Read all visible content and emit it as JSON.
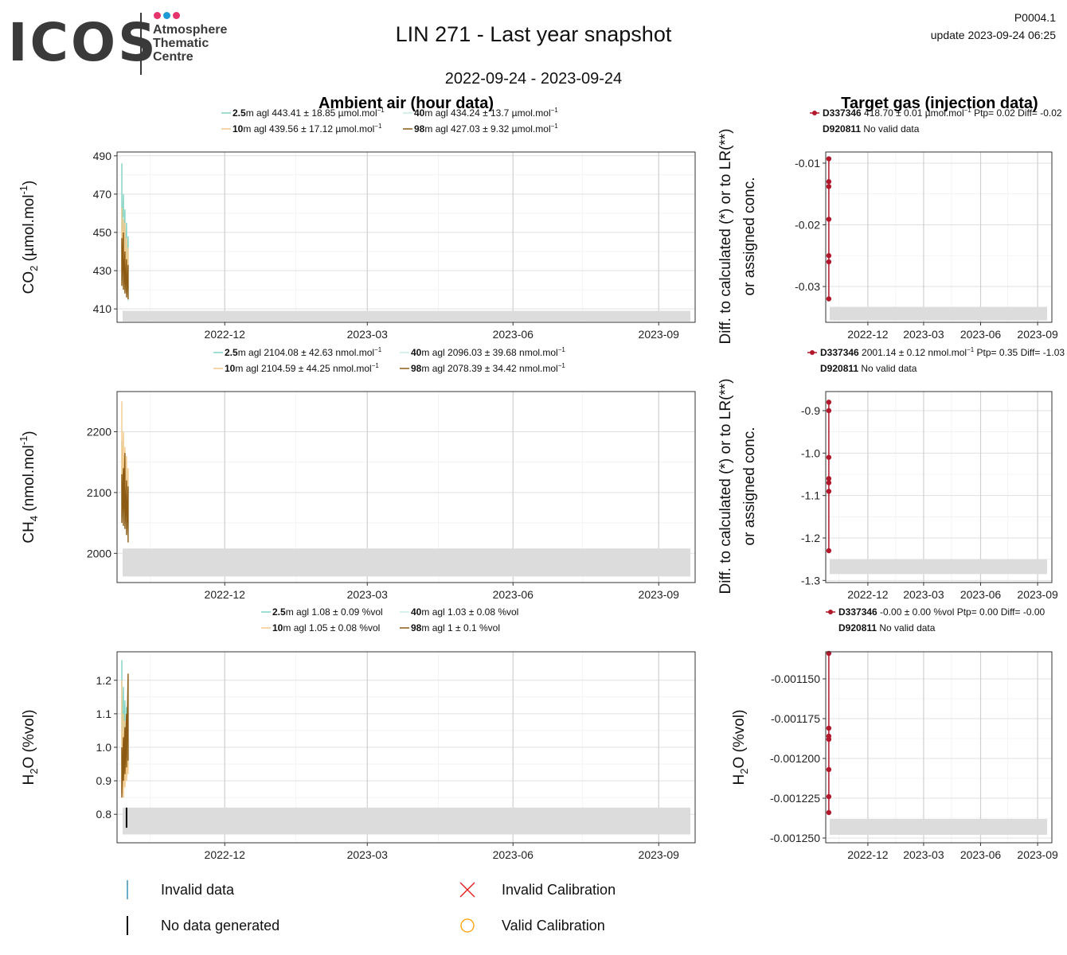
{
  "header": {
    "logo_wordmark": "ICOS",
    "logo_lines": [
      "Atmosphere",
      "Thematic",
      "Centre"
    ],
    "logo_dot_colors": [
      "#e5336c",
      "#1e9ad6",
      "#e5336c"
    ],
    "title": "LIN 271 - Last year snapshot",
    "date_range": "2022-09-24 - 2023-09-24",
    "product_code": "P0004.1",
    "update": "update  2023-09-24 06:25"
  },
  "column_titles": {
    "ambient": "Ambient air (hour data)",
    "target": "Target gas (injection data)"
  },
  "series_colors": {
    "2.5m": "#7fd3c2",
    "10m": "#f2c98a",
    "40m": "#c7ece4",
    "98m": "#8c5a12",
    "target": "#b2182b",
    "band": "#dcdcdc"
  },
  "legend": {
    "invalid_data": "Invalid data",
    "no_data": "No data generated",
    "invalid_calibration": "Invalid Calibration",
    "valid_calibration": "Valid Calibration",
    "invalid_data_color": "#3a8fb7",
    "no_data_color": "#000000",
    "invalid_cal_color": "#e41a1c",
    "valid_cal_color": "#ff9f00"
  },
  "chart_data": [
    {
      "type": "line",
      "panel": "ambient-co2",
      "ylabel": "CO2 (µmol.mol-1)",
      "ylim": [
        403,
        492
      ],
      "yticks": [
        "410",
        "430",
        "450",
        "470",
        "490"
      ],
      "yvals": [
        410,
        430,
        450,
        470,
        490
      ],
      "xlim": [
        "2022-09-24",
        "2023-09-24"
      ],
      "xticks": [
        "2022-12",
        "2023-03",
        "2023-06",
        "2023-09"
      ],
      "xtick_dates": [
        "2022-12-01",
        "2023-03-01",
        "2023-06-01",
        "2023-09-01"
      ],
      "band": [
        403.5,
        409
      ],
      "legend": [
        {
          "height": "2.5",
          "text": "m agl 443.41 ± 18.85 µmol.mol",
          "sup": "−1",
          "color_key": "2.5m"
        },
        {
          "height": "40",
          "text": "m agl 434.24 ± 13.7 µmol.mol",
          "sup": "−1",
          "color_key": "40m"
        },
        {
          "height": "10",
          "text": "m agl 439.56 ± 17.12 µmol.mol",
          "sup": "−1",
          "color_key": "10m"
        },
        {
          "height": "98",
          "text": "m agl 427.03 ± 9.32 µmol.mol",
          "sup": "−1",
          "color_key": "98m"
        }
      ],
      "series": [
        {
          "name": "2.5m",
          "x": [
            "2022-09-27",
            "2022-09-28",
            "2022-09-29",
            "2022-09-30",
            "2022-10-01"
          ],
          "y": [
            [
              440,
              486
            ],
            [
              432,
              470
            ],
            [
              428,
              462
            ],
            [
              420,
              455
            ],
            [
              415,
              448
            ]
          ]
        },
        {
          "name": "40m",
          "x": [
            "2022-09-27",
            "2022-09-28",
            "2022-09-29",
            "2022-09-30",
            "2022-10-01"
          ],
          "y": [
            [
              425,
              452
            ],
            [
              422,
              458
            ],
            [
              420,
              450
            ],
            [
              418,
              445
            ],
            [
              414,
              440
            ]
          ]
        },
        {
          "name": "10m",
          "x": [
            "2022-09-27",
            "2022-09-28",
            "2022-09-29",
            "2022-09-30",
            "2022-10-01"
          ],
          "y": [
            [
              430,
              463
            ],
            [
              425,
              457
            ],
            [
              420,
              455
            ],
            [
              418,
              447
            ],
            [
              416,
              442
            ]
          ]
        },
        {
          "name": "98m",
          "x": [
            "2022-09-27",
            "2022-09-28",
            "2022-09-29",
            "2022-09-30",
            "2022-10-01"
          ],
          "y": [
            [
              422,
              447
            ],
            [
              420,
              450
            ],
            [
              418,
              440
            ],
            [
              416,
              436
            ],
            [
              415,
              433
            ]
          ]
        }
      ]
    },
    {
      "type": "line",
      "panel": "ambient-ch4",
      "ylabel": "CH4 (nmol.mol-1)",
      "ylim": [
        1952,
        2266
      ],
      "yticks": [
        "2000",
        "2100",
        "2200"
      ],
      "yvals": [
        2000,
        2100,
        2200
      ],
      "xlim": [
        "2022-09-24",
        "2023-09-24"
      ],
      "xticks": [
        "2022-12",
        "2023-03",
        "2023-06",
        "2023-09"
      ],
      "xtick_dates": [
        "2022-12-01",
        "2023-03-01",
        "2023-06-01",
        "2023-09-01"
      ],
      "band": [
        1962,
        2008
      ],
      "legend": [
        {
          "height": "2.5",
          "text": "m agl 2104.08 ± 42.63 nmol.mol",
          "sup": "−1",
          "color_key": "2.5m"
        },
        {
          "height": "40",
          "text": "m agl 2096.03 ± 39.68 nmol.mol",
          "sup": "−1",
          "color_key": "40m"
        },
        {
          "height": "10",
          "text": "m agl 2104.59 ± 44.25 nmol.mol",
          "sup": "−1",
          "color_key": "10m"
        },
        {
          "height": "98",
          "text": "m agl 2078.39 ± 34.42 nmol.mol",
          "sup": "−1",
          "color_key": "98m"
        }
      ],
      "series": [
        {
          "name": "2.5m",
          "x": [
            "2022-09-27",
            "2022-09-28",
            "2022-09-29",
            "2022-09-30",
            "2022-10-01"
          ],
          "y": [
            [
              2080,
              2185
            ],
            [
              2070,
              2160
            ],
            [
              2060,
              2150
            ],
            [
              2050,
              2140
            ],
            [
              2040,
              2120
            ]
          ]
        },
        {
          "name": "40m",
          "x": [
            "2022-09-27",
            "2022-09-28",
            "2022-09-29",
            "2022-09-30",
            "2022-10-01"
          ],
          "y": [
            [
              2060,
              2150
            ],
            [
              2055,
              2145
            ],
            [
              2050,
              2135
            ],
            [
              2040,
              2125
            ],
            [
              2035,
              2110
            ]
          ]
        },
        {
          "name": "10m",
          "x": [
            "2022-09-27",
            "2022-09-28",
            "2022-09-29",
            "2022-09-30",
            "2022-10-01"
          ],
          "y": [
            [
              2100,
              2250
            ],
            [
              2080,
              2200
            ],
            [
              2065,
              2175
            ],
            [
              2050,
              2160
            ],
            [
              2040,
              2140
            ]
          ]
        },
        {
          "name": "98m",
          "x": [
            "2022-09-27",
            "2022-09-28",
            "2022-09-29",
            "2022-09-30",
            "2022-10-01"
          ],
          "y": [
            [
              2050,
              2130
            ],
            [
              2045,
              2140
            ],
            [
              2040,
              2165
            ],
            [
              2030,
              2120
            ],
            [
              2018,
              2110
            ]
          ]
        }
      ]
    },
    {
      "type": "line",
      "panel": "ambient-h2o",
      "ylabel": "H2O (%vol)",
      "ylim": [
        0.715,
        1.285
      ],
      "yticks": [
        "0.8",
        "0.9",
        "1.0",
        "1.1",
        "1.2"
      ],
      "yvals": [
        0.8,
        0.9,
        1.0,
        1.1,
        1.2
      ],
      "xlim": [
        "2022-09-24",
        "2023-09-24"
      ],
      "xticks": [
        "2022-12",
        "2023-03",
        "2023-06",
        "2023-09"
      ],
      "xtick_dates": [
        "2022-12-01",
        "2023-03-01",
        "2023-06-01",
        "2023-09-01"
      ],
      "band": [
        0.74,
        0.82
      ],
      "legend": [
        {
          "height": "2.5",
          "text": "m agl 1.08 ± 0.09 %vol",
          "sup": "",
          "color_key": "2.5m"
        },
        {
          "height": "40",
          "text": "m agl 1.03 ± 0.08 %vol",
          "sup": "",
          "color_key": "40m"
        },
        {
          "height": "10",
          "text": "m agl 1.05 ± 0.08 %vol",
          "sup": "",
          "color_key": "10m"
        },
        {
          "height": "98",
          "text": "m agl 1 ± 0.1 %vol",
          "sup": "",
          "color_key": "98m"
        }
      ],
      "no_data_segment": {
        "x": "2022-09-30",
        "y": [
          0.76,
          0.82
        ]
      },
      "series": [
        {
          "name": "2.5m",
          "x": [
            "2022-09-27",
            "2022-09-28",
            "2022-09-29",
            "2022-09-30",
            "2022-10-01"
          ],
          "y": [
            [
              0.95,
              1.26
            ],
            [
              0.92,
              1.18
            ],
            [
              0.9,
              1.14
            ],
            [
              0.92,
              1.12
            ],
            [
              0.95,
              1.1
            ]
          ]
        },
        {
          "name": "40m",
          "x": [
            "2022-09-27",
            "2022-09-28",
            "2022-09-29",
            "2022-09-30",
            "2022-10-01"
          ],
          "y": [
            [
              0.9,
              1.12
            ],
            [
              0.88,
              1.08
            ],
            [
              0.9,
              1.05
            ],
            [
              0.9,
              1.04
            ],
            [
              0.95,
              1.05
            ]
          ]
        },
        {
          "name": "10m",
          "x": [
            "2022-09-27",
            "2022-09-28",
            "2022-09-29",
            "2022-09-30",
            "2022-10-01"
          ],
          "y": [
            [
              0.86,
              1.2
            ],
            [
              0.85,
              1.1
            ],
            [
              0.88,
              1.08
            ],
            [
              0.9,
              1.02
            ],
            [
              0.92,
              1.02
            ]
          ]
        },
        {
          "name": "98m",
          "x": [
            "2022-09-27",
            "2022-09-28",
            "2022-09-29",
            "2022-09-30",
            "2022-10-01"
          ],
          "y": [
            [
              0.85,
              1.0
            ],
            [
              0.9,
              1.03
            ],
            [
              0.92,
              1.06
            ],
            [
              0.94,
              1.1
            ],
            [
              0.96,
              1.22
            ]
          ]
        }
      ]
    },
    {
      "type": "scatter",
      "panel": "target-co2",
      "ylabel": "Diff. to calculated (*) or to LR(**) or assigned conc.",
      "ylim": [
        -0.0358,
        -0.0082
      ],
      "yticks": [
        "-0.03",
        "-0.02",
        "-0.01"
      ],
      "yvals": [
        -0.03,
        -0.02,
        -0.01
      ],
      "xlim": [
        "2022-09-24",
        "2023-09-24"
      ],
      "xticks": [
        "2022-12",
        "2023-03",
        "2023-06",
        "2023-09"
      ],
      "xtick_dates": [
        "2022-12-01",
        "2023-03-01",
        "2023-06-01",
        "2023-09-01"
      ],
      "band": [
        -0.0355,
        -0.0333
      ],
      "legend": [
        {
          "id": "D337346",
          "text": " 418.70 ± 0.01 µmol.mol",
          "sup": "−1",
          "tail": " Ptp= 0.02 Diff= -0.02",
          "marker": true
        },
        {
          "id": "D920811",
          "text": " No valid data",
          "sup": "",
          "tail": "",
          "marker": false
        }
      ],
      "points": {
        "x": [
          "2022-09-29",
          "2022-09-29",
          "2022-09-29",
          "2022-09-29",
          "2022-09-29",
          "2022-09-29",
          "2022-09-29"
        ],
        "y": [
          -0.0093,
          -0.013,
          -0.0138,
          -0.0191,
          -0.025,
          -0.026,
          -0.032
        ]
      }
    },
    {
      "type": "scatter",
      "panel": "target-ch4",
      "ylabel": "Diff. to calculated (*) or to LR(**) or assigned conc.",
      "ylim": [
        -1.305,
        -0.855
      ],
      "yticks": [
        "-1.3",
        "-1.2",
        "-1.1",
        "-1.0",
        "-0.9"
      ],
      "yvals": [
        -1.3,
        -1.2,
        -1.1,
        -1.0,
        -0.9
      ],
      "xlim": [
        "2022-09-24",
        "2023-09-24"
      ],
      "xticks": [
        "2022-12",
        "2023-03",
        "2023-06",
        "2023-09"
      ],
      "xtick_dates": [
        "2022-12-01",
        "2023-03-01",
        "2023-06-01",
        "2023-09-01"
      ],
      "band": [
        -1.285,
        -1.25
      ],
      "legend": [
        {
          "id": "D337346",
          "text": " 2001.14 ± 0.12 nmol.mol",
          "sup": "−1",
          "tail": " Ptp= 0.35 Diff= -1.03",
          "marker": true
        },
        {
          "id": "D920811",
          "text": " No valid data",
          "sup": "",
          "tail": "",
          "marker": false
        }
      ],
      "points": {
        "x": [
          "2022-09-29",
          "2022-09-29",
          "2022-09-29",
          "2022-09-29",
          "2022-09-29",
          "2022-09-29",
          "2022-09-29"
        ],
        "y": [
          -0.88,
          -0.9,
          -1.01,
          -1.06,
          -1.07,
          -1.09,
          -1.23
        ]
      }
    },
    {
      "type": "scatter",
      "panel": "target-h2o",
      "ylabel": "H2O (%vol)",
      "ylim": [
        -0.001253,
        -0.001133
      ],
      "yticks": [
        "-0.001250",
        "-0.001225",
        "-0.001200",
        "-0.001175",
        "-0.001150"
      ],
      "yvals": [
        -0.00125,
        -0.001225,
        -0.0012,
        -0.001175,
        -0.00115
      ],
      "xlim": [
        "2022-09-24",
        "2023-09-24"
      ],
      "xticks": [
        "2022-12",
        "2023-03",
        "2023-06",
        "2023-09"
      ],
      "xtick_dates": [
        "2022-12-01",
        "2023-03-01",
        "2023-06-01",
        "2023-09-01"
      ],
      "band": [
        -0.001248,
        -0.001238
      ],
      "legend": [
        {
          "id": "D337346",
          "text": " -0.00 ± 0.00 %vol Ptp= 0.00 Diff= -0.00",
          "sup": "",
          "tail": "",
          "marker": true
        },
        {
          "id": "D920811",
          "text": " No valid data",
          "sup": "",
          "tail": "",
          "marker": false
        }
      ],
      "points": {
        "x": [
          "2022-09-29",
          "2022-09-29",
          "2022-09-29",
          "2022-09-29",
          "2022-09-29",
          "2022-09-29",
          "2022-09-29"
        ],
        "y": [
          -0.001134,
          -0.001181,
          -0.001186,
          -0.001188,
          -0.001207,
          -0.001224,
          -0.001234
        ]
      }
    }
  ]
}
